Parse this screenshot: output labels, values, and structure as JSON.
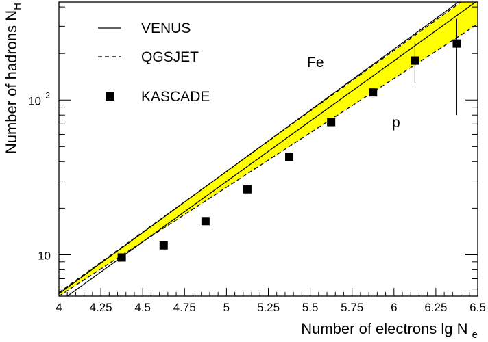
{
  "chart_data": {
    "type": "scatter",
    "xlabel": "Number of electrons lg N",
    "xlabel_sub": "e",
    "ylabel": "Number of hadrons N",
    "ylabel_sub": "H",
    "xlim": [
      4.0,
      6.5
    ],
    "ylim": [
      5.4,
      430
    ],
    "yscale": "log",
    "grid": false,
    "x_ticks": [
      "4",
      "4.25",
      "4.5",
      "4.75",
      "5",
      "5.25",
      "5.5",
      "5.75",
      "6",
      "6.25",
      "6.5"
    ],
    "y_ticks": [
      {
        "value": 10,
        "label": "10",
        "sup": ""
      },
      {
        "value": 100,
        "label": "10",
        "sup": "2"
      }
    ],
    "legend": {
      "position": "top-left",
      "entries": [
        {
          "label": "VENUS",
          "style": "solid line"
        },
        {
          "label": "QGSJET",
          "style": "dashed line"
        },
        {
          "label": "KASCADE",
          "style": "filled square marker"
        }
      ]
    },
    "annotations": [
      {
        "text": "Fe",
        "near": "upper curves"
      },
      {
        "text": "p",
        "near": "lower curves"
      }
    ],
    "series": [
      {
        "name": "KASCADE",
        "kind": "points",
        "x": [
          4.375,
          4.625,
          4.875,
          5.125,
          5.375,
          5.625,
          5.875,
          6.125,
          6.375
        ],
        "y": [
          9.6,
          11.5,
          16.5,
          26.5,
          43,
          72,
          112,
          180,
          232
        ],
        "err_low": [
          null,
          null,
          null,
          null,
          null,
          null,
          null,
          130,
          80
        ],
        "err_high": [
          null,
          null,
          null,
          null,
          null,
          null,
          null,
          240,
          335
        ]
      },
      {
        "name": "VENUS",
        "kind": "line",
        "style": "solid",
        "component": "Fe",
        "x": [
          4.0,
          6.5
        ],
        "y": [
          5.6,
          530
        ]
      },
      {
        "name": "VENUS",
        "kind": "line",
        "style": "solid",
        "component": "p",
        "x": [
          4.05,
          6.5
        ],
        "y": [
          5.4,
          440
        ]
      },
      {
        "name": "QGSJET",
        "kind": "line",
        "style": "dashed",
        "component": "Fe",
        "x": [
          4.0,
          6.4
        ],
        "y": [
          5.7,
          430
        ]
      },
      {
        "name": "QGSJET",
        "kind": "line",
        "style": "dashed",
        "component": "p",
        "x": [
          4.0,
          6.5
        ],
        "y": [
          5.4,
          310
        ]
      }
    ],
    "band": {
      "color": "#ffff00",
      "between": [
        "QGSJET Fe",
        "QGSJET p"
      ]
    }
  }
}
